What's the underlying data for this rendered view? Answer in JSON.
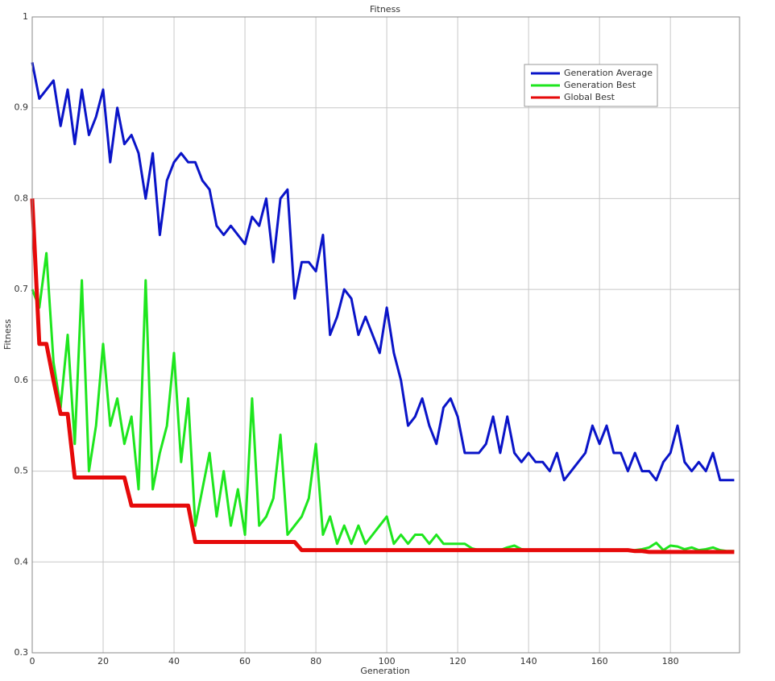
{
  "chart_data": {
    "type": "line",
    "title": "Fitness",
    "x_label": "Generation",
    "y_label": "Fitness",
    "x": [
      0,
      2,
      4,
      6,
      8,
      10,
      12,
      14,
      16,
      18,
      20,
      22,
      24,
      26,
      28,
      30,
      32,
      34,
      36,
      38,
      40,
      42,
      44,
      46,
      48,
      50,
      52,
      54,
      56,
      58,
      60,
      62,
      64,
      66,
      68,
      70,
      72,
      74,
      76,
      78,
      80,
      82,
      84,
      86,
      88,
      90,
      92,
      94,
      96,
      98,
      100,
      102,
      104,
      106,
      108,
      110,
      112,
      114,
      116,
      118,
      120,
      122,
      124,
      126,
      128,
      130,
      132,
      134,
      136,
      138,
      140,
      142,
      144,
      146,
      148,
      150,
      152,
      154,
      156,
      158,
      160,
      162,
      164,
      166,
      168,
      170,
      172,
      174,
      176,
      178,
      180,
      182,
      184,
      186,
      188,
      190,
      192,
      194,
      196,
      198
    ],
    "series": [
      {
        "name": "Generation Average",
        "color": "#0a14c8",
        "width": 3,
        "values": [
          0.95,
          0.91,
          0.92,
          0.93,
          0.88,
          0.92,
          0.86,
          0.92,
          0.87,
          0.89,
          0.92,
          0.84,
          0.9,
          0.86,
          0.87,
          0.85,
          0.8,
          0.85,
          0.76,
          0.82,
          0.84,
          0.85,
          0.84,
          0.84,
          0.82,
          0.81,
          0.77,
          0.76,
          0.77,
          0.76,
          0.75,
          0.78,
          0.77,
          0.8,
          0.73,
          0.8,
          0.81,
          0.69,
          0.73,
          0.73,
          0.72,
          0.76,
          0.65,
          0.67,
          0.7,
          0.69,
          0.65,
          0.67,
          0.65,
          0.63,
          0.68,
          0.63,
          0.6,
          0.55,
          0.56,
          0.58,
          0.55,
          0.53,
          0.57,
          0.58,
          0.56,
          0.52,
          0.52,
          0.52,
          0.53,
          0.56,
          0.52,
          0.56,
          0.52,
          0.51,
          0.52,
          0.51,
          0.51,
          0.5,
          0.52,
          0.49,
          0.5,
          0.51,
          0.52,
          0.55,
          0.53,
          0.55,
          0.52,
          0.52,
          0.5,
          0.52,
          0.5,
          0.5,
          0.49,
          0.51,
          0.52,
          0.55,
          0.51,
          0.5,
          0.51,
          0.5,
          0.52,
          0.49,
          0.49,
          0.49
        ]
      },
      {
        "name": "Generation Best",
        "color": "#1ee61e",
        "width": 3,
        "values": [
          0.7,
          0.68,
          0.74,
          0.62,
          0.57,
          0.65,
          0.53,
          0.71,
          0.5,
          0.55,
          0.64,
          0.55,
          0.58,
          0.53,
          0.56,
          0.48,
          0.71,
          0.48,
          0.52,
          0.55,
          0.63,
          0.51,
          0.58,
          0.44,
          0.48,
          0.52,
          0.45,
          0.5,
          0.44,
          0.48,
          0.43,
          0.58,
          0.44,
          0.45,
          0.47,
          0.54,
          0.43,
          0.44,
          0.45,
          0.47,
          0.53,
          0.43,
          0.45,
          0.42,
          0.44,
          0.42,
          0.44,
          0.42,
          0.43,
          0.44,
          0.45,
          0.42,
          0.43,
          0.42,
          0.43,
          0.43,
          0.42,
          0.43,
          0.42,
          0.42,
          0.42,
          0.42,
          0.415,
          0.413,
          0.413,
          0.413,
          0.413,
          0.416,
          0.418,
          0.414,
          0.413,
          0.413,
          0.413,
          0.413,
          0.413,
          0.413,
          0.413,
          0.413,
          0.413,
          0.413,
          0.413,
          0.413,
          0.413,
          0.413,
          0.413,
          0.413,
          0.414,
          0.416,
          0.421,
          0.413,
          0.418,
          0.417,
          0.414,
          0.416,
          0.413,
          0.414,
          0.416,
          0.413,
          0.412,
          0.412
        ]
      },
      {
        "name": "Global Best",
        "color": "#e60a0a",
        "width": 5,
        "values": [
          0.8,
          0.64,
          0.64,
          0.6,
          0.563,
          0.563,
          0.493,
          0.493,
          0.493,
          0.493,
          0.493,
          0.493,
          0.493,
          0.493,
          0.462,
          0.462,
          0.462,
          0.462,
          0.462,
          0.462,
          0.462,
          0.462,
          0.462,
          0.422,
          0.422,
          0.422,
          0.422,
          0.422,
          0.422,
          0.422,
          0.422,
          0.422,
          0.422,
          0.422,
          0.422,
          0.422,
          0.422,
          0.422,
          0.413,
          0.413,
          0.413,
          0.413,
          0.413,
          0.413,
          0.413,
          0.413,
          0.413,
          0.413,
          0.413,
          0.413,
          0.413,
          0.413,
          0.413,
          0.413,
          0.413,
          0.413,
          0.413,
          0.413,
          0.413,
          0.413,
          0.413,
          0.413,
          0.413,
          0.413,
          0.413,
          0.413,
          0.413,
          0.413,
          0.413,
          0.413,
          0.413,
          0.413,
          0.413,
          0.413,
          0.413,
          0.413,
          0.413,
          0.413,
          0.413,
          0.413,
          0.413,
          0.413,
          0.413,
          0.413,
          0.413,
          0.412,
          0.412,
          0.411,
          0.411,
          0.411,
          0.411,
          0.411,
          0.411,
          0.411,
          0.411,
          0.411,
          0.411,
          0.411,
          0.411,
          0.411
        ]
      }
    ],
    "xlim": [
      0,
      199.5
    ],
    "xticks": [
      0,
      20,
      40,
      60,
      80,
      100,
      120,
      140,
      160,
      180
    ],
    "ylim": [
      0.3,
      1
    ],
    "yticks": [
      0.3,
      0.4,
      0.5,
      0.6,
      0.7,
      0.8,
      0.9,
      1
    ],
    "grid": true,
    "legend": "upper right"
  }
}
